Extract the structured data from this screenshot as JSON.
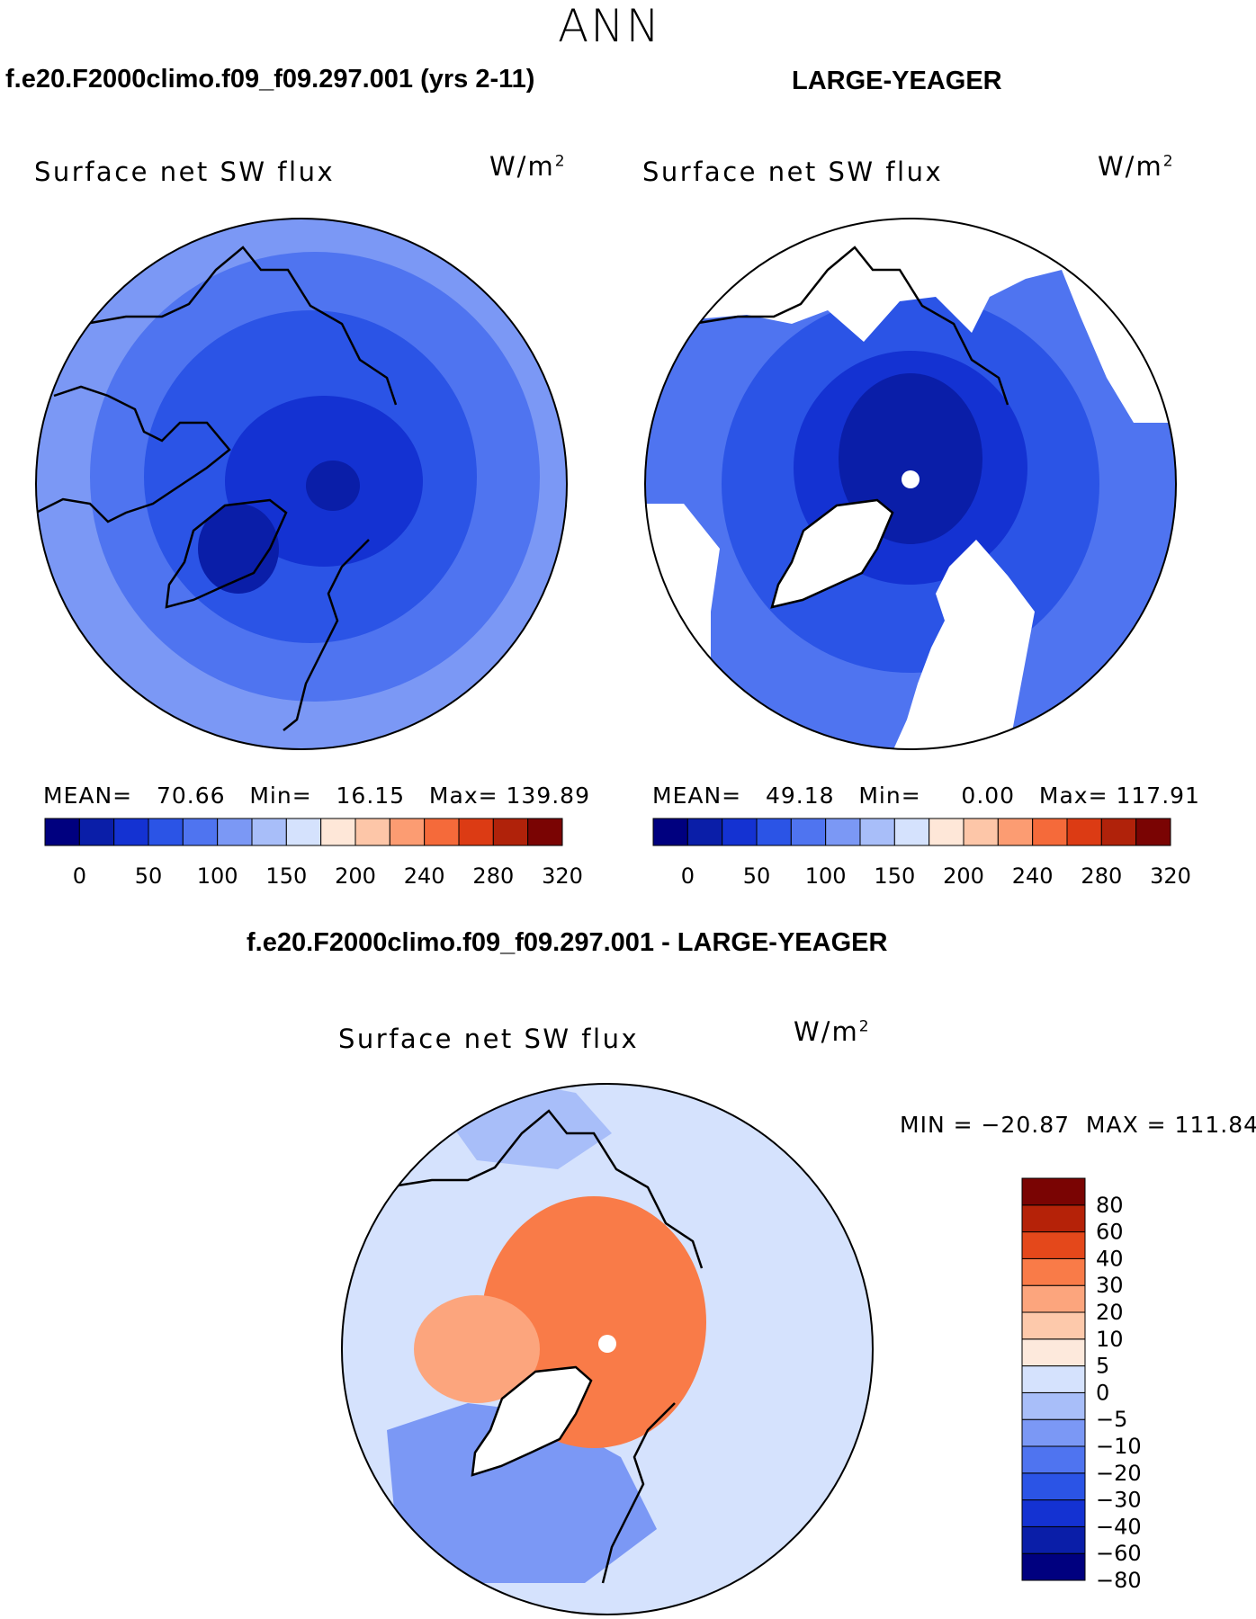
{
  "season": "ANN",
  "left_title": "f.e20.F2000climo.f09_f09.297.001 (yrs 2-11)",
  "right_title": "LARGE-YEAGER",
  "diff_title": "f.e20.F2000climo.f09_f09.297.001 - LARGE-YEAGER",
  "colors": {
    "seq": [
      "#00007f",
      "#0a1ea8",
      "#1432d2",
      "#2b54e6",
      "#4f74f0",
      "#7b98f5",
      "#a8bef9",
      "#d5e2fd",
      "#fee7d8",
      "#fdc6a8",
      "#fc9c72",
      "#f56a3a",
      "#dc3b14",
      "#b0220a",
      "#7a0403"
    ],
    "diff": [
      "#00007f",
      "#0a1ea8",
      "#1432d2",
      "#2b54e6",
      "#4f74f0",
      "#7b98f5",
      "#a8bef9",
      "#d5e2fd",
      "#fde9dc",
      "#fdc9ab",
      "#fca57d",
      "#f97b48",
      "#e4481b",
      "#b52208",
      "#7a0403"
    ],
    "land": "#ffffff",
    "coast": "#000000"
  },
  "panels": [
    {
      "id": "model",
      "variable": "Surface net SW flux",
      "units": "W/m",
      "units_exp": "2",
      "stats": "MEAN=   70.66   Min=   16.15   Max= 139.89",
      "center_value": 30
    },
    {
      "id": "obs",
      "variable": "Surface net SW flux",
      "units": "W/m",
      "units_exp": "2",
      "stats": "MEAN=   49.18   Min=     0.00   Max= 117.91",
      "center_value": 5
    }
  ],
  "diff_panel": {
    "variable": "Surface net SW flux",
    "units": "W/m",
    "units_exp": "2",
    "stats": "MIN = −20.87  MAX = 111.84"
  },
  "chart_data": [
    {
      "type": "heatmap",
      "title": "Surface net SW flux",
      "subtitle": "f.e20.F2000climo.f09_f09.297.001 (yrs 2-11)",
      "units": "W/m2",
      "mean": 70.66,
      "min": 16.15,
      "max": 139.89,
      "colorbar_levels": [
        0,
        25,
        50,
        75,
        100,
        125,
        150,
        175,
        200,
        220,
        240,
        260,
        280,
        300,
        320
      ],
      "colorbar_labels": [
        "0",
        "50",
        "100",
        "150",
        "200",
        "240",
        "280",
        "320"
      ],
      "projection": "north polar stereographic"
    },
    {
      "type": "heatmap",
      "title": "Surface net SW flux",
      "subtitle": "LARGE-YEAGER",
      "units": "W/m2",
      "mean": 49.18,
      "min": 0.0,
      "max": 117.91,
      "colorbar_levels": [
        0,
        25,
        50,
        75,
        100,
        125,
        150,
        175,
        200,
        220,
        240,
        260,
        280,
        300,
        320
      ],
      "colorbar_labels": [
        "0",
        "50",
        "100",
        "150",
        "200",
        "240",
        "280",
        "320"
      ],
      "projection": "north polar stereographic"
    },
    {
      "type": "heatmap",
      "title": "Surface net SW flux",
      "subtitle": "f.e20.F2000climo.f09_f09.297.001 - LARGE-YEAGER",
      "units": "W/m2",
      "min": -20.87,
      "max": 111.84,
      "colorbar_levels": [
        -80,
        -60,
        -40,
        -30,
        -20,
        -10,
        -5,
        0,
        5,
        10,
        20,
        30,
        40,
        60,
        80
      ],
      "colorbar_labels": [
        "80",
        "60",
        "40",
        "30",
        "20",
        "10",
        "5",
        "0",
        "−5",
        "−10",
        "−20",
        "−30",
        "−40",
        "−60",
        "−80"
      ],
      "projection": "north polar stereographic"
    }
  ]
}
